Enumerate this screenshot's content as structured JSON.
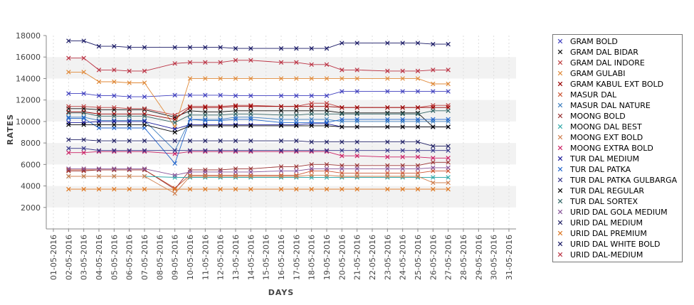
{
  "chart_data": {
    "type": "line",
    "title": "",
    "xlabel": "DAYS",
    "ylabel": "RATES",
    "ylim": [
      0,
      18000
    ],
    "yticks": [
      2000,
      4000,
      6000,
      8000,
      10000,
      12000,
      14000,
      16000,
      18000
    ],
    "grid": "alternating horizontal bands",
    "legend": "right",
    "x": [
      "01-05-2016",
      "02-05-2016",
      "03-05-2016",
      "04-05-2016",
      "05-05-2016",
      "06-05-2016",
      "07-05-2016",
      "08-05-2016",
      "09-05-2016",
      "10-05-2016",
      "11-05-2016",
      "12-05-2016",
      "13-05-2016",
      "14-05-2016",
      "15-05-2016",
      "16-05-2016",
      "17-05-2016",
      "18-05-2016",
      "19-05-2016",
      "20-05-2016",
      "21-05-2016",
      "22-05-2016",
      "23-05-2016",
      "24-05-2016",
      "25-05-2016",
      "26-05-2016",
      "27-05-2016",
      "28-05-2016",
      "29-05-2016",
      "30-05-2016",
      "31-05-2016"
    ],
    "series": [
      {
        "name": "GRAM BOLD",
        "color": "#3f3fbf",
        "values": [
          null,
          12600,
          12600,
          12400,
          12400,
          12300,
          12300,
          null,
          12450,
          12450,
          12450,
          12450,
          12400,
          12400,
          null,
          12400,
          12400,
          12400,
          12400,
          12800,
          12800,
          null,
          12800,
          12800,
          12800,
          12800,
          12800,
          null,
          null,
          null,
          null
        ]
      },
      {
        "name": "GRAM DAL BIDAR",
        "color": "#111111",
        "values": [
          null,
          11200,
          11200,
          11100,
          11100,
          11100,
          11100,
          null,
          10400,
          11000,
          10900,
          10900,
          11000,
          11000,
          null,
          11000,
          11000,
          11000,
          11000,
          10800,
          10800,
          null,
          10800,
          10800,
          10800,
          9500,
          9500,
          null,
          null,
          null,
          null
        ]
      },
      {
        "name": "GRAM DAL INDORE",
        "color": "#bf3f3f",
        "values": [
          null,
          11400,
          11400,
          11300,
          11300,
          11200,
          11200,
          null,
          10600,
          11400,
          11400,
          11400,
          11500,
          11500,
          null,
          11400,
          11400,
          11700,
          11700,
          11300,
          11300,
          null,
          11300,
          11300,
          11300,
          11500,
          11500,
          null,
          null,
          null,
          null
        ]
      },
      {
        "name": "GRAM GULABI",
        "color": "#e08a3a",
        "values": [
          null,
          14600,
          14600,
          13700,
          13700,
          13600,
          13600,
          null,
          9500,
          14000,
          14000,
          14000,
          14000,
          14000,
          null,
          14000,
          14000,
          14000,
          14000,
          14000,
          14000,
          null,
          14000,
          14000,
          14000,
          13500,
          13500,
          null,
          null,
          null,
          null
        ]
      },
      {
        "name": "GRAM KABUL EXT BOLD",
        "color": "#990000",
        "values": [
          null,
          10900,
          10900,
          10700,
          10700,
          10700,
          10700,
          null,
          10200,
          11300,
          11300,
          11300,
          11400,
          11400,
          null,
          11400,
          11400,
          11400,
          11400,
          11300,
          11300,
          null,
          11300,
          11300,
          11300,
          11300,
          11300,
          null,
          null,
          null,
          null
        ]
      },
      {
        "name": "MASUR DAL",
        "color": "#cc5533",
        "values": [
          null,
          5500,
          5500,
          5500,
          5500,
          5500,
          5500,
          null,
          3800,
          5000,
          5000,
          5000,
          5000,
          5000,
          null,
          5000,
          5000,
          5400,
          5400,
          5200,
          5200,
          null,
          5200,
          5200,
          5200,
          5400,
          5400,
          null,
          null,
          null,
          null
        ]
      },
      {
        "name": "MASUR DAL NATURE",
        "color": "#3f7fbf",
        "values": [
          null,
          10400,
          10400,
          10100,
          10100,
          10100,
          10100,
          null,
          7300,
          10200,
          10200,
          10200,
          10400,
          10400,
          null,
          10200,
          10200,
          10200,
          10200,
          10000,
          10000,
          null,
          10000,
          10000,
          10000,
          10000,
          10000,
          null,
          null,
          null,
          null
        ]
      },
      {
        "name": "MOONG BOLD",
        "color": "#993333",
        "values": [
          null,
          5400,
          5400,
          5500,
          5500,
          5500,
          5500,
          null,
          3700,
          5500,
          5500,
          5500,
          5600,
          5600,
          null,
          5800,
          5800,
          6000,
          6000,
          5900,
          5900,
          null,
          5900,
          5900,
          5900,
          6200,
          6200,
          null,
          null,
          null,
          null
        ]
      },
      {
        "name": "MOONG DAL BEST",
        "color": "#33aaaa",
        "values": [
          null,
          4900,
          4900,
          4900,
          4900,
          4900,
          4900,
          null,
          4800,
          4800,
          4800,
          4800,
          4800,
          4800,
          null,
          4800,
          4800,
          4800,
          4800,
          4800,
          4800,
          null,
          4800,
          4800,
          4800,
          4800,
          4800,
          null,
          null,
          null,
          null
        ]
      },
      {
        "name": "MOONG EXT BOLD",
        "color": "#d08050",
        "values": [
          null,
          4900,
          4900,
          4900,
          4900,
          4900,
          4900,
          null,
          3300,
          4900,
          4900,
          4900,
          4900,
          4900,
          null,
          4900,
          4900,
          5000,
          5000,
          4900,
          4900,
          null,
          4900,
          4900,
          4900,
          4300,
          4300,
          null,
          null,
          null,
          null
        ]
      },
      {
        "name": "MOONG EXTRA BOLD",
        "color": "#cc2266",
        "values": [
          null,
          7100,
          7100,
          7200,
          7200,
          7200,
          7200,
          null,
          7000,
          7200,
          7200,
          7200,
          7200,
          7200,
          null,
          7200,
          7200,
          7200,
          7200,
          6800,
          6800,
          null,
          6700,
          6700,
          6700,
          6600,
          6600,
          null,
          null,
          null,
          null
        ]
      },
      {
        "name": "TUR DAL MEDIUM",
        "color": "#1a1a99",
        "values": [
          null,
          9900,
          9900,
          10000,
          10000,
          10000,
          10000,
          null,
          9300,
          9700,
          9700,
          9700,
          9700,
          9700,
          null,
          9700,
          9700,
          9800,
          9800,
          9500,
          9500,
          null,
          9500,
          9500,
          9500,
          9500,
          9500,
          null,
          null,
          null,
          null
        ]
      },
      {
        "name": "TUR DAL PATKA",
        "color": "#2266cc",
        "values": [
          null,
          10300,
          10300,
          9400,
          9400,
          9400,
          9400,
          null,
          6100,
          10200,
          10100,
          10100,
          10200,
          10200,
          null,
          9900,
          9900,
          9900,
          9900,
          10200,
          10200,
          null,
          10200,
          10200,
          10200,
          10200,
          10200,
          null,
          null,
          null,
          null
        ]
      },
      {
        "name": "TUR DAL PATKA GULBARGA",
        "color": "#333388",
        "values": [
          null,
          7500,
          7500,
          7300,
          7300,
          7300,
          7300,
          null,
          7300,
          7300,
          7300,
          7300,
          7300,
          7300,
          null,
          7300,
          7300,
          7300,
          7300,
          7300,
          7300,
          null,
          7300,
          7300,
          7300,
          7300,
          7300,
          null,
          null,
          null,
          null
        ]
      },
      {
        "name": "TUR DAL REGULAR",
        "color": "#000000",
        "values": [
          null,
          9700,
          9700,
          9700,
          9700,
          9700,
          9700,
          null,
          9000,
          9600,
          9600,
          9600,
          9600,
          9600,
          null,
          9600,
          9600,
          9600,
          9600,
          9500,
          9500,
          null,
          9500,
          9500,
          9500,
          9500,
          9500,
          null,
          null,
          null,
          null
        ]
      },
      {
        "name": "TUR DAL SORTEX",
        "color": "#336666",
        "values": [
          null,
          10800,
          10800,
          10500,
          10500,
          10500,
          10500,
          null,
          9900,
          10600,
          10600,
          10600,
          10700,
          10700,
          null,
          10600,
          10600,
          10700,
          10700,
          10700,
          10700,
          null,
          10700,
          10700,
          10700,
          11000,
          11000,
          null,
          null,
          null,
          null
        ]
      },
      {
        "name": "URID DAL GOLA MEDIUM",
        "color": "#885599",
        "values": [
          null,
          5600,
          5600,
          5600,
          5600,
          5600,
          5600,
          null,
          5000,
          5300,
          5300,
          5300,
          5300,
          5300,
          null,
          5400,
          5400,
          5600,
          5600,
          5600,
          5600,
          null,
          5600,
          5600,
          5600,
          5700,
          5700,
          null,
          null,
          null,
          null
        ]
      },
      {
        "name": "URID DAL MEDIUM",
        "color": "#222266",
        "values": [
          null,
          8300,
          8300,
          8200,
          8200,
          8200,
          8200,
          null,
          8200,
          8200,
          8200,
          8200,
          8200,
          8200,
          null,
          8200,
          8200,
          8100,
          8100,
          8100,
          8100,
          null,
          8100,
          8100,
          8100,
          7700,
          7700,
          null,
          null,
          null,
          null
        ]
      },
      {
        "name": "URID DAL PREMIUM",
        "color": "#dd7722",
        "values": [
          null,
          3700,
          3700,
          3700,
          3700,
          3700,
          3700,
          null,
          3700,
          3700,
          3700,
          3700,
          3700,
          3700,
          null,
          3700,
          3700,
          3700,
          3700,
          3700,
          3700,
          null,
          3700,
          3700,
          3700,
          3700,
          3700,
          null,
          null,
          null,
          null
        ]
      },
      {
        "name": "URID DAL WHITE BOLD",
        "color": "#1a1a66",
        "values": [
          null,
          17500,
          17500,
          17000,
          17000,
          16900,
          16900,
          null,
          16900,
          16900,
          16900,
          16900,
          16800,
          16800,
          null,
          16800,
          16800,
          16800,
          16800,
          17300,
          17300,
          null,
          17300,
          17300,
          17300,
          17200,
          17200,
          null,
          null,
          null,
          null
        ]
      },
      {
        "name": "URID DAL-MEDIUM",
        "color": "#bb3344",
        "values": [
          null,
          15900,
          15900,
          14800,
          14800,
          14700,
          14700,
          null,
          15400,
          15500,
          15500,
          15500,
          15700,
          15700,
          null,
          15500,
          15500,
          15300,
          15300,
          14800,
          14800,
          null,
          14700,
          14700,
          14700,
          14800,
          14800,
          null,
          null,
          null,
          null
        ]
      }
    ]
  }
}
